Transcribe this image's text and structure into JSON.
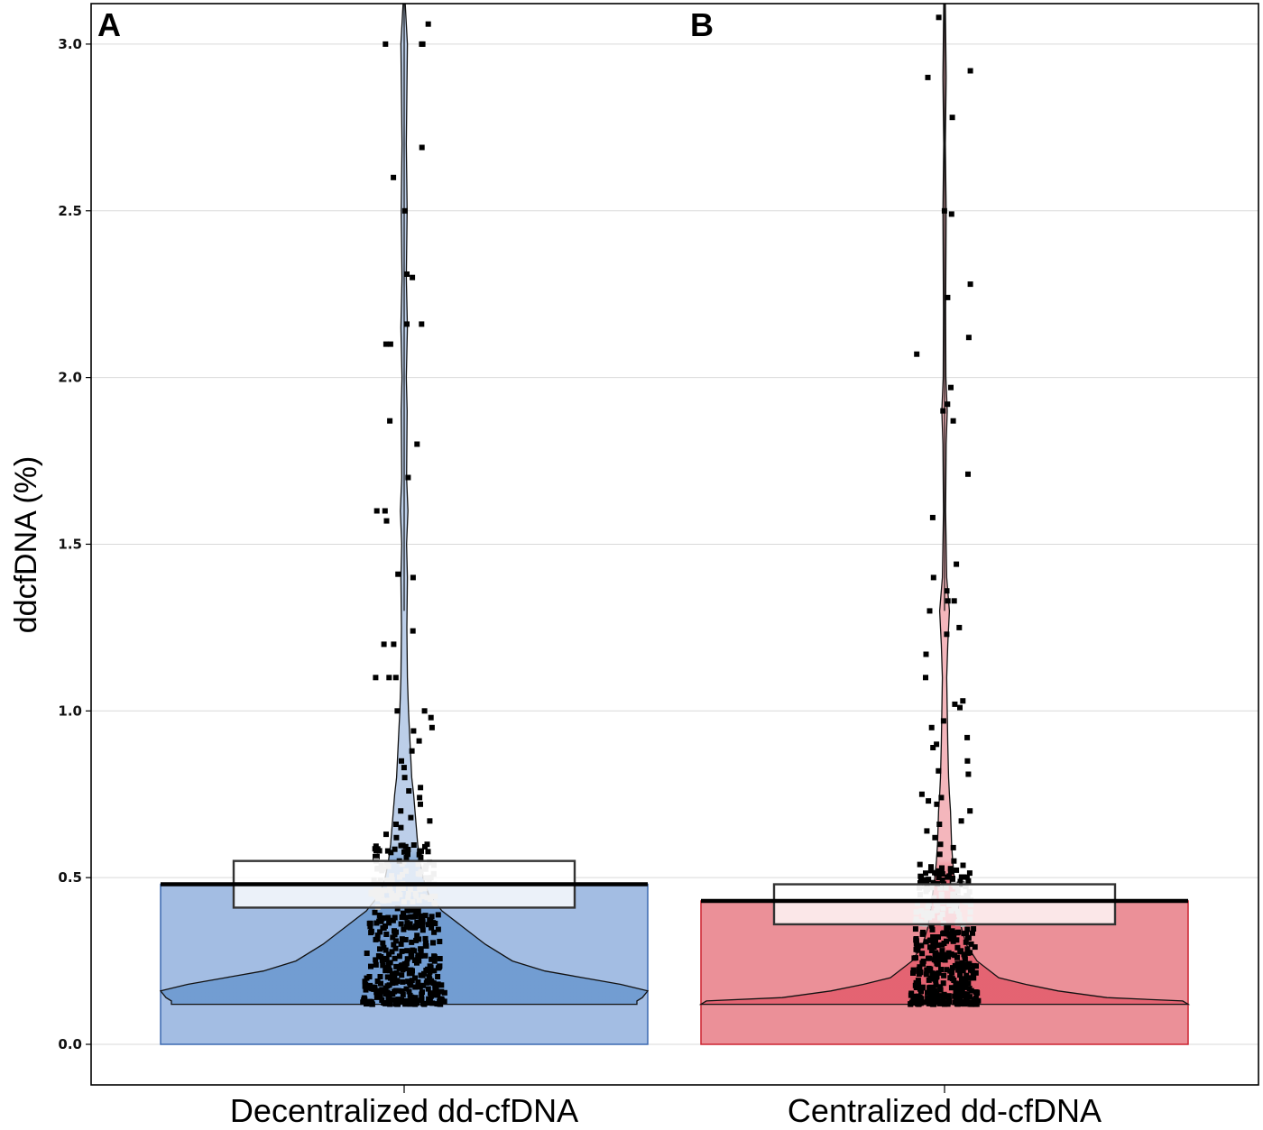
{
  "chart_data": {
    "type": "violin-bar-box",
    "title": "",
    "xlabel": "",
    "ylabel": "ddcfDNA (%)",
    "ylim": [
      0,
      3.12
    ],
    "yticks": [
      0.0,
      0.5,
      1.0,
      1.5,
      2.0,
      2.5,
      3.0
    ],
    "ytick_labels": [
      "0.0",
      "0.5",
      "1.0",
      "1.5",
      "2.0",
      "2.5",
      "3.0"
    ],
    "grid": true,
    "panel_labels": [
      "A",
      "B"
    ],
    "categories": [
      "Decentralized dd-cfDNA",
      "Centralized dd-cfDNA"
    ],
    "groups": [
      {
        "name": "Decentralized dd-cfDNA",
        "bar_value": 0.48,
        "box": {
          "q1": 0.41,
          "median": 0.48,
          "q3": 0.55
        },
        "bar_color": "#a3bde3",
        "bar_edge": "#3b68b0",
        "violin_fill": "#6f9bd1",
        "violin_tail_fill": "#b8cce8",
        "y_min": 0.12,
        "y_max": 3.12,
        "violin_profile": [
          [
            0.12,
            0.86
          ],
          [
            0.13,
            0.86
          ],
          [
            0.14,
            0.88
          ],
          [
            0.16,
            0.9
          ],
          [
            0.18,
            0.8
          ],
          [
            0.2,
            0.66
          ],
          [
            0.22,
            0.52
          ],
          [
            0.25,
            0.4
          ],
          [
            0.3,
            0.3
          ],
          [
            0.35,
            0.22
          ],
          [
            0.4,
            0.14
          ],
          [
            0.45,
            0.09
          ],
          [
            0.5,
            0.07
          ],
          [
            0.55,
            0.058
          ],
          [
            0.6,
            0.05
          ],
          [
            0.65,
            0.045
          ],
          [
            0.7,
            0.04
          ],
          [
            0.75,
            0.035
          ],
          [
            0.8,
            0.028
          ],
          [
            0.9,
            0.022
          ],
          [
            1.0,
            0.016
          ],
          [
            1.1,
            0.012
          ],
          [
            1.25,
            0.01
          ],
          [
            1.4,
            0.012
          ],
          [
            1.5,
            0.009
          ],
          [
            1.6,
            0.014
          ],
          [
            1.7,
            0.009
          ],
          [
            1.9,
            0.011
          ],
          [
            2.0,
            0.008
          ],
          [
            2.15,
            0.012
          ],
          [
            2.3,
            0.008
          ],
          [
            2.5,
            0.011
          ],
          [
            2.7,
            0.008
          ],
          [
            3.0,
            0.012
          ],
          [
            3.12,
            0.004
          ]
        ],
        "outlier_points": [
          3.06,
          3.0,
          3.0,
          3.0,
          2.69,
          2.6,
          2.5,
          2.31,
          2.3,
          2.16,
          2.16,
          2.1,
          2.1,
          1.87,
          1.8,
          1.7,
          1.6,
          1.6,
          1.57,
          1.41,
          1.4,
          1.24,
          1.2,
          1.2,
          1.1,
          1.1,
          1.1,
          1.0,
          1.0,
          0.98,
          0.95,
          0.94,
          0.91,
          0.88,
          0.85,
          0.83,
          0.8,
          0.77,
          0.76,
          0.74,
          0.72,
          0.7,
          0.68,
          0.67,
          0.66,
          0.65,
          0.63,
          0.62,
          0.6,
          0.58,
          0.58,
          0.57,
          0.56
        ]
      },
      {
        "name": "Centralized dd-cfDNA",
        "bar_value": 0.43,
        "box": {
          "q1": 0.36,
          "median": 0.43,
          "q3": 0.48
        },
        "bar_color": "#eb9098",
        "bar_edge": "#cc2230",
        "violin_fill": "#e46170",
        "violin_tail_fill": "#f3b2b8",
        "y_min": 0.12,
        "y_max": 3.12,
        "violin_profile": [
          [
            0.12,
            0.9
          ],
          [
            0.13,
            0.88
          ],
          [
            0.14,
            0.6
          ],
          [
            0.16,
            0.42
          ],
          [
            0.18,
            0.3
          ],
          [
            0.2,
            0.2
          ],
          [
            0.25,
            0.12
          ],
          [
            0.3,
            0.08
          ],
          [
            0.35,
            0.062
          ],
          [
            0.4,
            0.052
          ],
          [
            0.45,
            0.044
          ],
          [
            0.5,
            0.036
          ],
          [
            0.55,
            0.03
          ],
          [
            0.6,
            0.026
          ],
          [
            0.65,
            0.024
          ],
          [
            0.7,
            0.022
          ],
          [
            0.75,
            0.018
          ],
          [
            0.8,
            0.015
          ],
          [
            0.9,
            0.012
          ],
          [
            1.0,
            0.01
          ],
          [
            1.1,
            0.008
          ],
          [
            1.2,
            0.012
          ],
          [
            1.3,
            0.018
          ],
          [
            1.4,
            0.008
          ],
          [
            1.6,
            0.004
          ],
          [
            1.8,
            0.006
          ],
          [
            1.9,
            0.01
          ],
          [
            2.0,
            0.005
          ],
          [
            2.2,
            0.004
          ],
          [
            2.5,
            0.006
          ],
          [
            2.7,
            0.003
          ],
          [
            2.9,
            0.006
          ],
          [
            3.12,
            0.003
          ]
        ],
        "outlier_points": [
          3.08,
          2.92,
          2.9,
          2.78,
          2.5,
          2.49,
          2.28,
          2.24,
          2.12,
          2.07,
          1.97,
          1.92,
          1.9,
          1.87,
          1.71,
          1.58,
          1.44,
          1.4,
          1.36,
          1.33,
          1.33,
          1.3,
          1.25,
          1.23,
          1.17,
          1.1,
          1.03,
          1.02,
          1.01,
          0.97,
          0.95,
          0.92,
          0.9,
          0.89,
          0.85,
          0.82,
          0.81,
          0.75,
          0.74,
          0.73,
          0.72,
          0.7,
          0.67,
          0.66,
          0.64,
          0.62,
          0.6,
          0.59,
          0.57,
          0.55,
          0.52,
          0.5
        ]
      }
    ]
  }
}
